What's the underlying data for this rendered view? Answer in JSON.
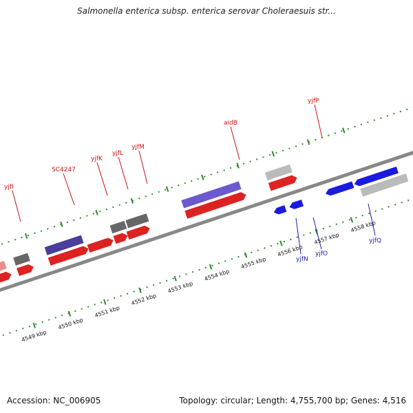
{
  "title": "Salmonella enterica subsp. enterica serovar Choleraesuis str...",
  "footer": {
    "accession": "Accession: NC_006905",
    "summary": "Topology: circular; Length: 4,755,700 bp; Genes: 4,516"
  },
  "colors": {
    "forward_gene": "#dd2222",
    "reverse_gene": "#1a1ae0",
    "label_forward": "#cc1111",
    "label_reverse": "#1a1ab0",
    "ticks": "#2a8a2a",
    "backbone": "#888888"
  },
  "scale_labels": [
    "4549 kbp",
    "4550 kbp",
    "4551 kbp",
    "4552 kbp",
    "4553 kbp",
    "4554 kbp",
    "4555 kbp",
    "4556 kbp",
    "4557 kbp",
    "4558 kbp"
  ],
  "gene_labels_top": [
    "yjfI",
    "SC4247",
    "yjfK",
    "yjfL",
    "yjfM",
    "aidB",
    "yjfP"
  ],
  "gene_labels_bottom": [
    "yjfN",
    "yjfO",
    "yjfQ"
  ]
}
